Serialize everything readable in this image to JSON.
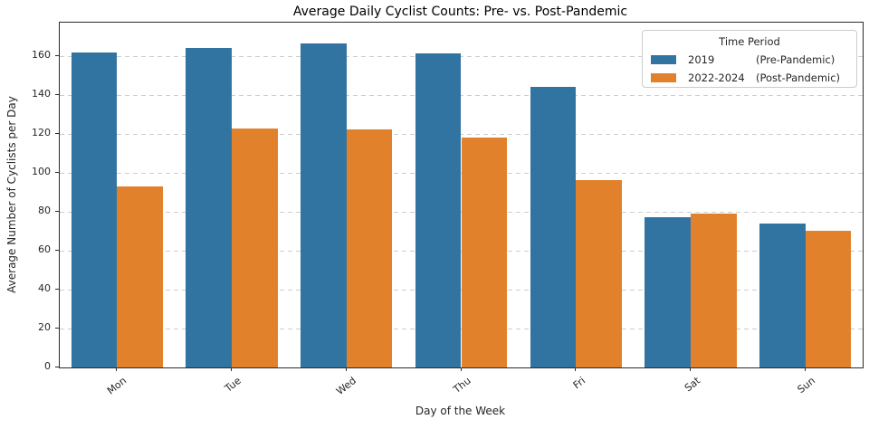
{
  "chart_data": {
    "type": "bar",
    "title": "Average Daily Cyclist Counts: Pre- vs. Post-Pandemic",
    "xlabel": "Day of the Week",
    "ylabel": "Average Number of Cyclists per Day",
    "categories": [
      "Mon",
      "Tue",
      "Wed",
      "Thu",
      "Fri",
      "Sat",
      "Sun"
    ],
    "series": [
      {
        "name": "2019",
        "name_suffix": "(Pre-Pandemic)",
        "color": "#3274a1",
        "values": [
          161.5,
          164,
          166.5,
          161,
          144,
          77,
          74
        ]
      },
      {
        "name": "2022-2024",
        "name_suffix": "(Post-Pandemic)",
        "color": "#e1812c",
        "values": [
          93,
          122.5,
          122,
          118,
          96,
          79,
          70
        ]
      }
    ],
    "legend_title": "Time Period",
    "legend_position": "upper right",
    "ylim": [
      0,
      177
    ],
    "yticks": [
      0,
      20,
      40,
      60,
      80,
      100,
      120,
      140,
      160
    ],
    "grid": "horizontal dashed",
    "bar_group_width_fraction": 0.8
  }
}
